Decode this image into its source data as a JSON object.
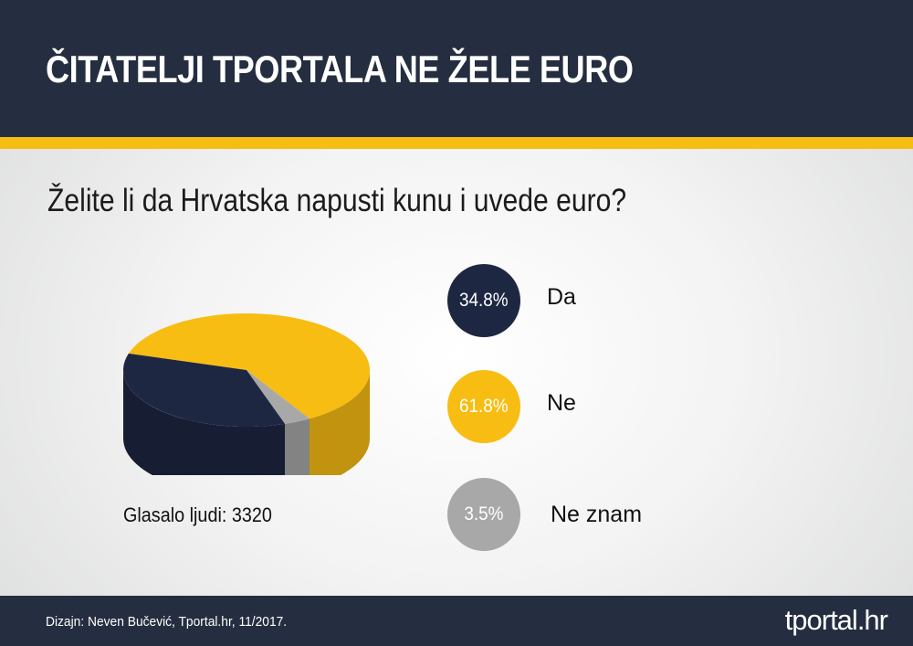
{
  "header": {
    "title": "ČITATELJI TPORTALA NE ŽELE EURO"
  },
  "colors": {
    "header_bg": "#252e40",
    "accent": "#f7bd12",
    "da": "#1e2742",
    "ne": "#f7bd12",
    "ne_znam": "#a8a8a8"
  },
  "chart_data": {
    "type": "pie",
    "title": "Želite li da Hrvatska napusti kunu i uvede euro?",
    "slices": [
      {
        "label": "Da",
        "value": 34.8,
        "display": "34.8%",
        "color": "#1e2742"
      },
      {
        "label": "Ne",
        "value": 61.8,
        "display": "61.8%",
        "color": "#f7bd12"
      },
      {
        "label": "Ne znam",
        "value": 3.5,
        "display": "3.5%",
        "color": "#a8a8a8"
      }
    ],
    "voters_label": "Glasalo ljudi: 3320",
    "legend_position": "right"
  },
  "footer": {
    "credit": "Dizajn: Neven Bučević, Tportal.hr, 11/2017.",
    "logo": "tportal.hr"
  }
}
